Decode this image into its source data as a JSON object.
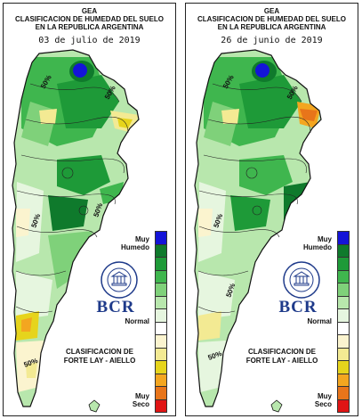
{
  "panels": [
    {
      "org": "GEA",
      "title_line1": "CLASIFICACION DE HUMEDAD DEL SUELO",
      "title_line2": "EN LA REPUBLICA ARGENTINA",
      "date": "03 de julio de 2019",
      "contour_labels": [
        "50%",
        "50%",
        "50%",
        "50%",
        "50%"
      ]
    },
    {
      "org": "GEA",
      "title_line1": "CLASIFICACION DE HUMEDAD DEL SUELO",
      "title_line2": "EN LA REPUBLICA ARGENTINA",
      "date": "26 de junio de 2019",
      "contour_labels": [
        "50%",
        "50%",
        "50%",
        "50%",
        "50%"
      ]
    }
  ],
  "legend": {
    "muy_humedo_line1": "Muy",
    "muy_humedo_line2": "Humedo",
    "normal": "Normal",
    "muy_seco_line1": "Muy",
    "muy_seco_line2": "Seco",
    "clasif_line1": "CLASIFICACION DE",
    "clasif_line2": "FORTE LAY - AIELLO",
    "colors": [
      "#1414d8",
      "#0f7a2c",
      "#1e9a38",
      "#3fb64e",
      "#7fd17a",
      "#b8e7ad",
      "#e6f6df",
      "#ffffff",
      "#fbf4cf",
      "#f3ea93",
      "#e6d41c",
      "#f3a620",
      "#e8751a",
      "#e01414"
    ]
  },
  "logo": {
    "text": "BCR",
    "seal_text": "BOLSA DE COMERCIO DE ROSARIO"
  },
  "colors": {
    "border": "#222222",
    "brand": "#1e3a8a"
  }
}
